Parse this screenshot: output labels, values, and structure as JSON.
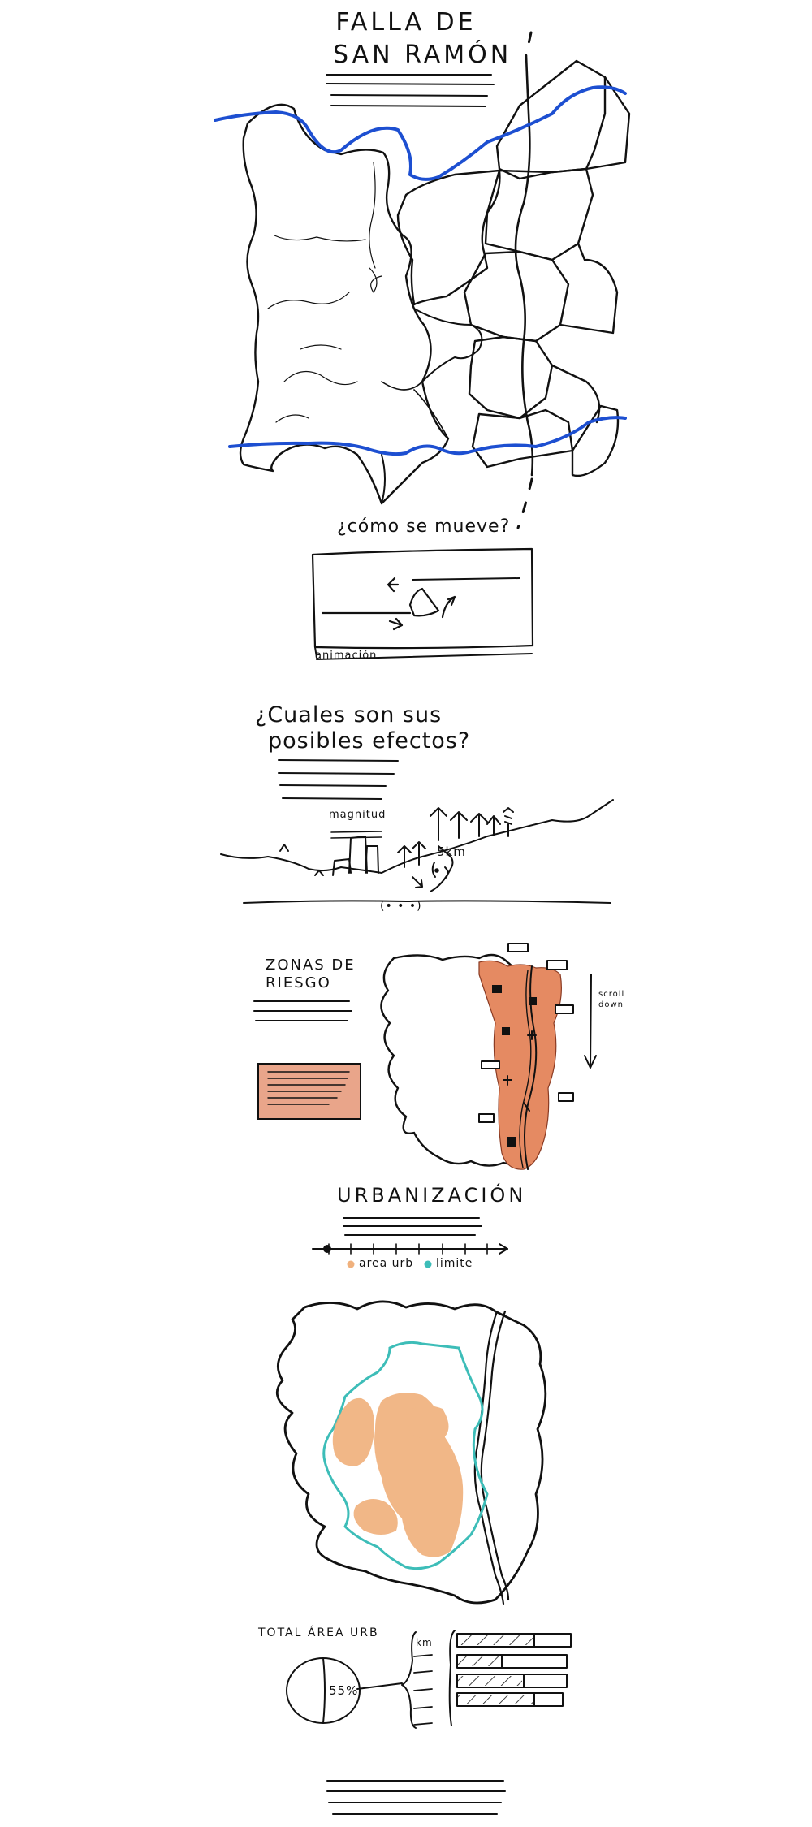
{
  "title": {
    "line1": "FALLA DE",
    "line2": "SAN RAMÓN"
  },
  "section_move": {
    "question": "¿cómo se mueve?",
    "caption": "animación"
  },
  "section_effects": {
    "question_line1": "¿Cuales son sus",
    "question_line2": "posibles efectos?",
    "label_magnitude": "magnitud",
    "label_distance": "5km",
    "label_dots": "(• • •)"
  },
  "section_risk": {
    "title_line1": "ZONAS DE",
    "title_line2": "RIESGO",
    "scroll_line1": "scroll",
    "scroll_line2": "down"
  },
  "section_urban": {
    "title": "URBANIZACIÓN",
    "legend": [
      {
        "label": "area urb",
        "color": "#f0b17d"
      },
      {
        "label": "limite",
        "color": "#3dbdb8"
      }
    ]
  },
  "section_total": {
    "title": "TOTAL ÁREA URB",
    "pie_label": "55%",
    "list_label": "km"
  },
  "colors": {
    "fault_blue": "#1d4fd1",
    "risk_orange": "#e58a62",
    "urban_orange": "#f0b17d",
    "limit_teal": "#3dbdb8",
    "risk_box": "#e9a58a"
  }
}
